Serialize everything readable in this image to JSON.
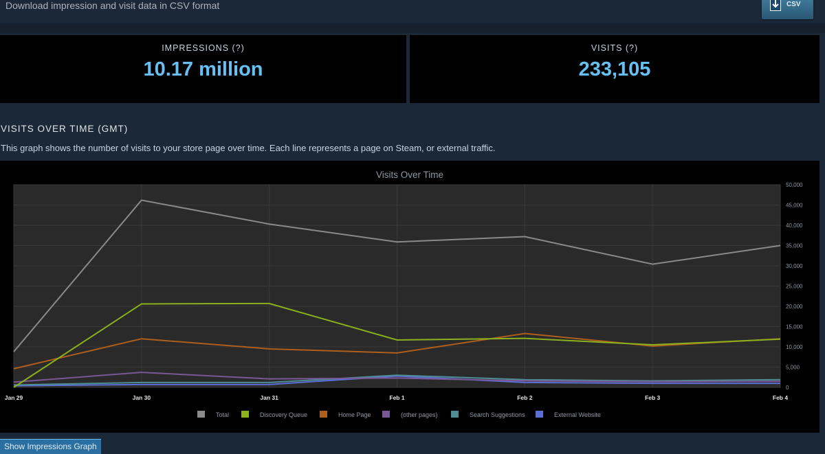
{
  "header": {
    "download_text": "Download impression and visit data in CSV format",
    "csv_label": "CSV"
  },
  "stats": {
    "impressions": {
      "label": "IMPRESSIONS (?)",
      "value": "10.17 million"
    },
    "visits": {
      "label": "VISITS (?)",
      "value": "233,105"
    }
  },
  "section": {
    "title": "VISITS OVER TIME (GMT)",
    "description": "This graph shows the number of visits to your store page over time. Each line represents a page on Steam, or external traffic."
  },
  "chart_data": {
    "type": "line",
    "title": "Visits Over Time",
    "xlabel": "",
    "ylabel": "",
    "categories": [
      "Jan 29",
      "Jan 30",
      "Jan 31",
      "Feb 1",
      "Feb 2",
      "Feb 3",
      "Feb 4"
    ],
    "ylim": [
      0,
      50000
    ],
    "yticks": [
      0,
      5000,
      10000,
      15000,
      20000,
      25000,
      30000,
      35000,
      40000,
      45000,
      50000
    ],
    "ytick_labels": [
      "0",
      "5,000",
      "10,000",
      "15,000",
      "20,000",
      "25,000",
      "30,000",
      "35,000",
      "40,000",
      "45,000",
      "50,000"
    ],
    "grid": true,
    "legend_position": "bottom",
    "series": [
      {
        "name": "Total",
        "color": "#8a8a8a",
        "values": [
          8800,
          46200,
          40300,
          35900,
          37200,
          30400,
          35000
        ]
      },
      {
        "name": "Discovery Queue",
        "color": "#8cb11c",
        "values": [
          0,
          20600,
          20700,
          11700,
          12100,
          10500,
          11900
        ]
      },
      {
        "name": "Home Page",
        "color": "#ae5f1c",
        "values": [
          4600,
          12000,
          9500,
          8500,
          13300,
          10200,
          12000
        ]
      },
      {
        "name": "(other pages)",
        "color": "#7a5796",
        "values": [
          1300,
          3700,
          2100,
          2300,
          1600,
          1400,
          1500
        ]
      },
      {
        "name": "Search Suggestions",
        "color": "#4e8d96",
        "values": [
          600,
          1200,
          1200,
          3000,
          1900,
          1600,
          1900
        ]
      },
      {
        "name": "External Website",
        "color": "#5b6ed4",
        "values": [
          400,
          700,
          700,
          2800,
          1200,
          1000,
          1000
        ]
      }
    ]
  },
  "footer": {
    "show_impressions_label": "Show Impressions Graph"
  }
}
